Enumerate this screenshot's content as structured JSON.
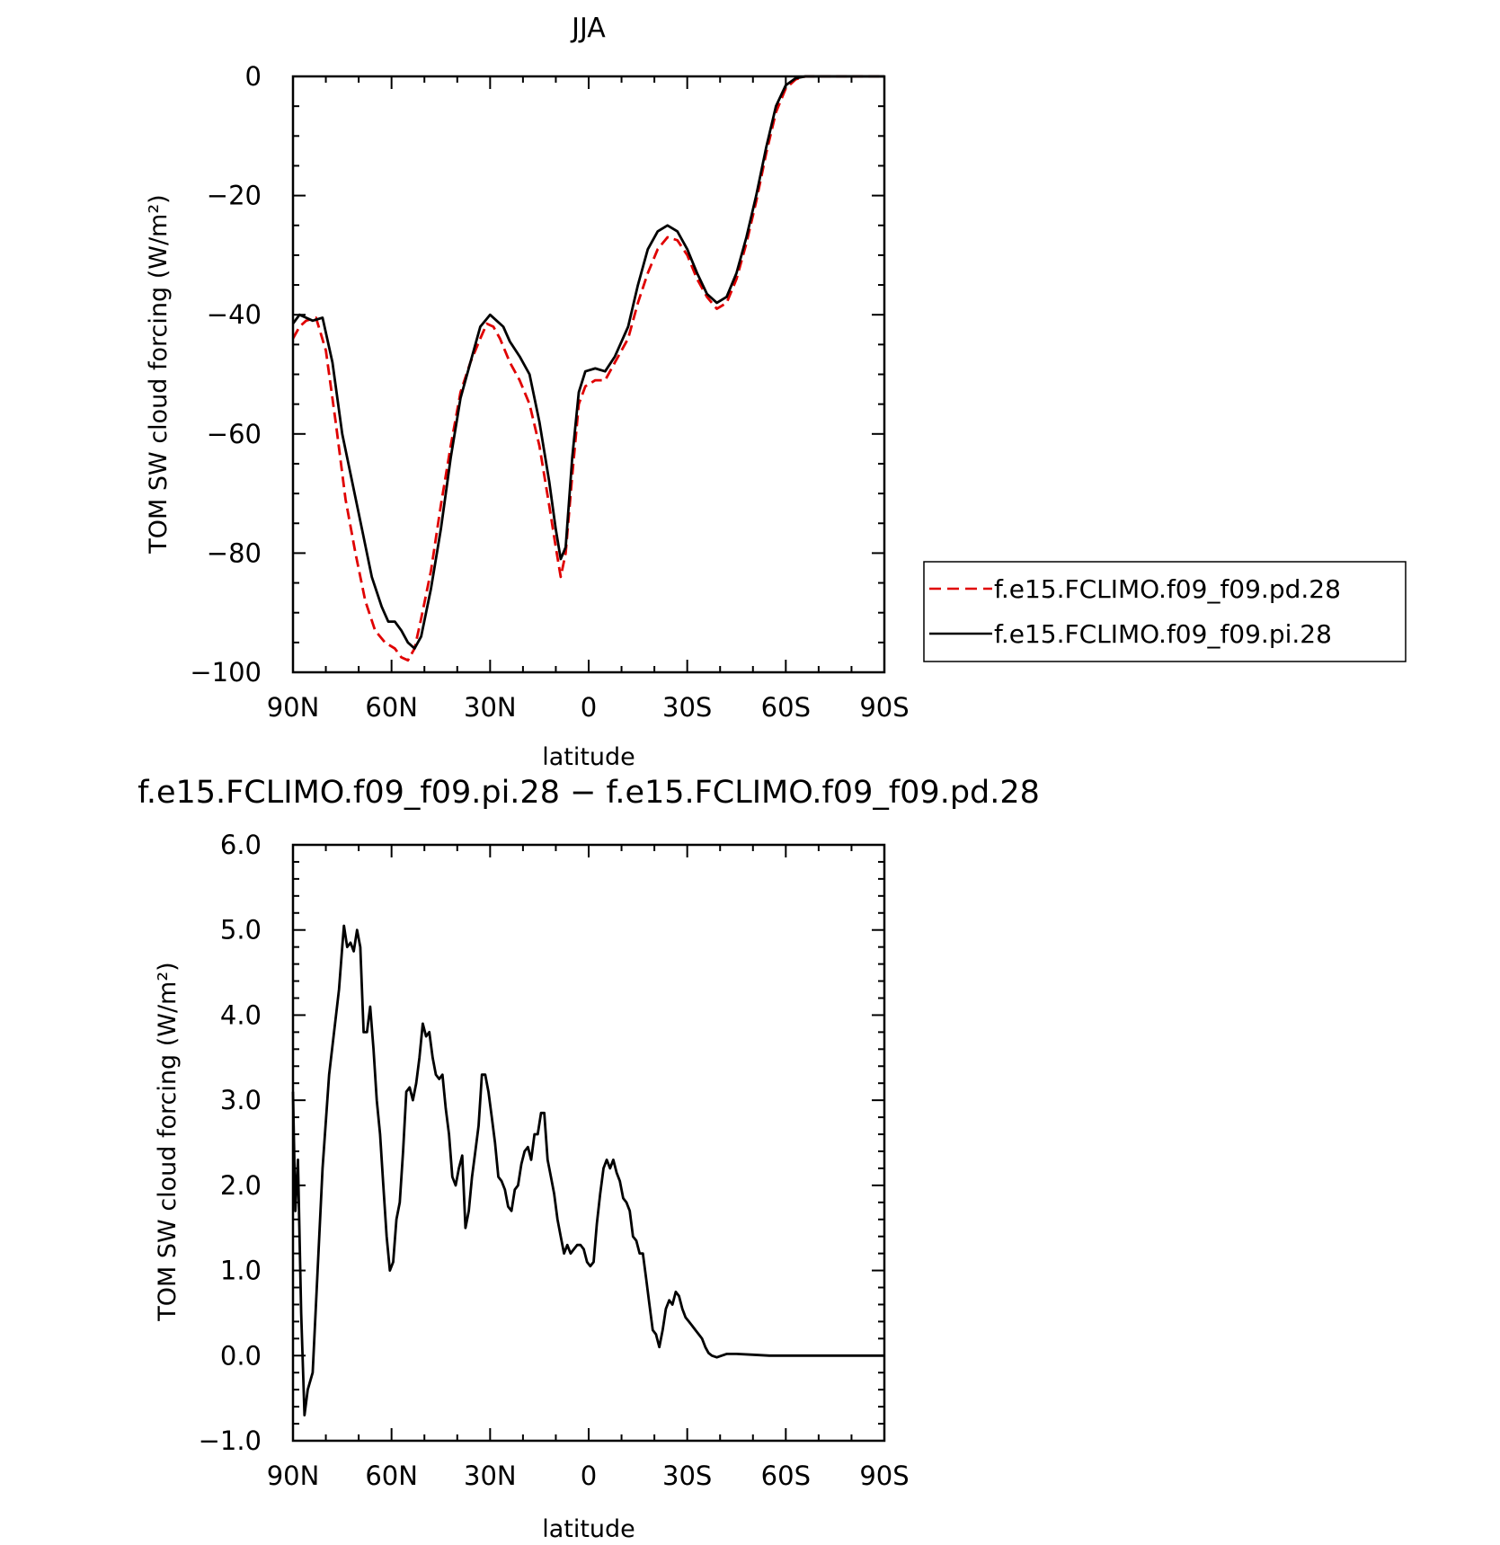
{
  "chart_data": [
    {
      "type": "line",
      "title": "JJA",
      "xlabel": "latitude",
      "ylabel": "TOM SW cloud forcing (W/m²)",
      "xlim": [
        90,
        -90
      ],
      "ylim": [
        -100,
        0
      ],
      "x_ticks": [
        90,
        60,
        30,
        0,
        -30,
        -60,
        -90
      ],
      "x_tick_labels": [
        "90N",
        "60N",
        "30N",
        "0",
        "30S",
        "60S",
        "90S"
      ],
      "y_ticks": [
        0,
        -20,
        -40,
        -60,
        -80,
        -100
      ],
      "y_tick_labels": [
        "0",
        "−20",
        "−40",
        "−60",
        "−80",
        "−100"
      ],
      "legend_position": "right",
      "series": [
        {
          "name": "f.e15.FCLIMO.f09_f09.pd.28",
          "color": "#e00000",
          "dash": "dashed",
          "points": [
            [
              90,
              -44
            ],
            [
              88,
              -42
            ],
            [
              86,
              -41
            ],
            [
              83,
              -40.5
            ],
            [
              80,
              -46
            ],
            [
              77,
              -58
            ],
            [
              74,
              -71
            ],
            [
              71,
              -80
            ],
            [
              68,
              -88
            ],
            [
              65,
              -93
            ],
            [
              62,
              -95
            ],
            [
              59,
              -96
            ],
            [
              57,
              -97.5
            ],
            [
              55,
              -98
            ],
            [
              53,
              -96
            ],
            [
              51,
              -91
            ],
            [
              48,
              -83
            ],
            [
              45,
              -72
            ],
            [
              42,
              -62
            ],
            [
              39,
              -53
            ],
            [
              36,
              -48
            ],
            [
              33,
              -44
            ],
            [
              31,
              -41.5
            ],
            [
              29,
              -42
            ],
            [
              27,
              -44
            ],
            [
              24,
              -48
            ],
            [
              21,
              -51
            ],
            [
              18,
              -55
            ],
            [
              15,
              -62
            ],
            [
              12,
              -72
            ],
            [
              10,
              -79
            ],
            [
              8.5,
              -84
            ],
            [
              7,
              -80
            ],
            [
              5,
              -67
            ],
            [
              3,
              -55
            ],
            [
              1,
              -52
            ],
            [
              -2,
              -51
            ],
            [
              -5,
              -51
            ],
            [
              -8,
              -48
            ],
            [
              -12,
              -44
            ],
            [
              -15,
              -38
            ],
            [
              -18,
              -33
            ],
            [
              -21,
              -29
            ],
            [
              -24,
              -27
            ],
            [
              -27,
              -27.5
            ],
            [
              -30,
              -30
            ],
            [
              -33,
              -34
            ],
            [
              -36,
              -37
            ],
            [
              -39,
              -39
            ],
            [
              -42,
              -38
            ],
            [
              -45,
              -34
            ],
            [
              -48,
              -28
            ],
            [
              -51,
              -21
            ],
            [
              -54,
              -13
            ],
            [
              -57,
              -6
            ],
            [
              -60,
              -2
            ],
            [
              -63,
              -0.5
            ],
            [
              -66,
              0
            ],
            [
              -70,
              0
            ],
            [
              -90,
              0
            ]
          ]
        },
        {
          "name": "f.e15.FCLIMO.f09_f09.pi.28",
          "color": "#000000",
          "dash": "solid",
          "points": [
            [
              90,
              -41.5
            ],
            [
              88,
              -40
            ],
            [
              86,
              -40.5
            ],
            [
              84,
              -41
            ],
            [
              81,
              -40.5
            ],
            [
              78,
              -48
            ],
            [
              75,
              -60
            ],
            [
              72,
              -68
            ],
            [
              69,
              -76
            ],
            [
              66,
              -84
            ],
            [
              63,
              -89
            ],
            [
              61,
              -91.5
            ],
            [
              59,
              -91.5
            ],
            [
              57,
              -93
            ],
            [
              55,
              -95
            ],
            [
              53,
              -96
            ],
            [
              51,
              -94
            ],
            [
              48,
              -86
            ],
            [
              45,
              -76
            ],
            [
              42,
              -64
            ],
            [
              39,
              -54
            ],
            [
              36,
              -48
            ],
            [
              33,
              -42
            ],
            [
              30,
              -40
            ],
            [
              28,
              -41
            ],
            [
              26,
              -42
            ],
            [
              24,
              -44.5
            ],
            [
              21,
              -47
            ],
            [
              18,
              -50
            ],
            [
              15,
              -58
            ],
            [
              12,
              -68
            ],
            [
              10,
              -76
            ],
            [
              8.5,
              -81
            ],
            [
              7,
              -79
            ],
            [
              5,
              -64
            ],
            [
              3,
              -53
            ],
            [
              1,
              -49.5
            ],
            [
              -2,
              -49
            ],
            [
              -5,
              -49.5
            ],
            [
              -8,
              -47
            ],
            [
              -12,
              -42
            ],
            [
              -15,
              -35
            ],
            [
              -18,
              -29
            ],
            [
              -21,
              -26
            ],
            [
              -24,
              -25
            ],
            [
              -27,
              -26
            ],
            [
              -30,
              -29
            ],
            [
              -33,
              -33
            ],
            [
              -36,
              -36.5
            ],
            [
              -39,
              -38
            ],
            [
              -42,
              -37
            ],
            [
              -45,
              -33
            ],
            [
              -48,
              -27
            ],
            [
              -51,
              -20
            ],
            [
              -54,
              -12
            ],
            [
              -57,
              -5
            ],
            [
              -60,
              -1.5
            ],
            [
              -63,
              -0.3
            ],
            [
              -66,
              0
            ],
            [
              -70,
              0
            ],
            [
              -90,
              0
            ]
          ]
        }
      ]
    },
    {
      "type": "line",
      "title": "f.e15.FCLIMO.f09_f09.pi.28 − f.e15.FCLIMO.f09_f09.pd.28",
      "xlabel": "latitude",
      "ylabel": "TOM SW cloud forcing (W/m²)",
      "xlim": [
        90,
        -90
      ],
      "ylim": [
        -1,
        6
      ],
      "x_ticks": [
        90,
        60,
        30,
        0,
        -30,
        -60,
        -90
      ],
      "x_tick_labels": [
        "90N",
        "60N",
        "30N",
        "0",
        "30S",
        "60S",
        "90S"
      ],
      "y_ticks": [
        6,
        5,
        4,
        3,
        2,
        1,
        0,
        -1
      ],
      "y_tick_labels": [
        "6.0",
        "5.0",
        "4.0",
        "3.0",
        "2.0",
        "1.0",
        "0.0",
        "−1.0"
      ],
      "series": [
        {
          "color": "#000000",
          "dash": "solid",
          "points": [
            [
              90,
              3.1
            ],
            [
              89.3,
              1.7
            ],
            [
              88.5,
              2.3
            ],
            [
              87.5,
              0.5
            ],
            [
              86.5,
              -0.7
            ],
            [
              85.5,
              -0.4
            ],
            [
              84,
              -0.2
            ],
            [
              82.5,
              1.0
            ],
            [
              81,
              2.2
            ],
            [
              79,
              3.3
            ],
            [
              77.5,
              3.8
            ],
            [
              76,
              4.3
            ],
            [
              75,
              4.8
            ],
            [
              74.5,
              5.05
            ],
            [
              73.5,
              4.8
            ],
            [
              72.5,
              4.85
            ],
            [
              71.5,
              4.75
            ],
            [
              70.5,
              5.0
            ],
            [
              69.5,
              4.8
            ],
            [
              68.5,
              3.8
            ],
            [
              67.5,
              3.8
            ],
            [
              66.5,
              4.1
            ],
            [
              65.5,
              3.6
            ],
            [
              64.5,
              3.0
            ],
            [
              63.5,
              2.6
            ],
            [
              62.5,
              2.0
            ],
            [
              61.5,
              1.4
            ],
            [
              60.5,
              1.0
            ],
            [
              59.5,
              1.1
            ],
            [
              58.5,
              1.6
            ],
            [
              57.5,
              1.8
            ],
            [
              56.5,
              2.4
            ],
            [
              55.5,
              3.1
            ],
            [
              54.5,
              3.15
            ],
            [
              53.5,
              3.0
            ],
            [
              52.5,
              3.2
            ],
            [
              51.5,
              3.5
            ],
            [
              50.5,
              3.9
            ],
            [
              49.5,
              3.75
            ],
            [
              48.5,
              3.8
            ],
            [
              47.5,
              3.5
            ],
            [
              46.5,
              3.3
            ],
            [
              45.5,
              3.25
            ],
            [
              44.5,
              3.3
            ],
            [
              43.5,
              2.9
            ],
            [
              42.5,
              2.6
            ],
            [
              41.5,
              2.1
            ],
            [
              40.5,
              2.0
            ],
            [
              39.5,
              2.2
            ],
            [
              38.5,
              2.35
            ],
            [
              37.5,
              1.5
            ],
            [
              36.5,
              1.7
            ],
            [
              35.5,
              2.1
            ],
            [
              34.5,
              2.4
            ],
            [
              33.5,
              2.7
            ],
            [
              32.5,
              3.3
            ],
            [
              31.5,
              3.3
            ],
            [
              30.5,
              3.1
            ],
            [
              29.5,
              2.8
            ],
            [
              28.5,
              2.5
            ],
            [
              27.5,
              2.1
            ],
            [
              26.5,
              2.05
            ],
            [
              25.5,
              1.95
            ],
            [
              24.5,
              1.75
            ],
            [
              23.5,
              1.7
            ],
            [
              22.5,
              1.95
            ],
            [
              21.5,
              2.0
            ],
            [
              20.5,
              2.25
            ],
            [
              19.5,
              2.4
            ],
            [
              18.5,
              2.45
            ],
            [
              17.5,
              2.3
            ],
            [
              16.5,
              2.6
            ],
            [
              15.5,
              2.6
            ],
            [
              14.5,
              2.85
            ],
            [
              13.5,
              2.85
            ],
            [
              12.5,
              2.3
            ],
            [
              11.5,
              2.1
            ],
            [
              10.5,
              1.9
            ],
            [
              9.5,
              1.6
            ],
            [
              8.5,
              1.4
            ],
            [
              7.5,
              1.2
            ],
            [
              6.5,
              1.3
            ],
            [
              5.5,
              1.2
            ],
            [
              4.5,
              1.25
            ],
            [
              3.5,
              1.3
            ],
            [
              2.5,
              1.3
            ],
            [
              1.5,
              1.25
            ],
            [
              0.5,
              1.1
            ],
            [
              -0.5,
              1.05
            ],
            [
              -1.5,
              1.1
            ],
            [
              -2.5,
              1.55
            ],
            [
              -3.5,
              1.9
            ],
            [
              -4.5,
              2.2
            ],
            [
              -5.5,
              2.3
            ],
            [
              -6.5,
              2.2
            ],
            [
              -7.5,
              2.3
            ],
            [
              -8.5,
              2.15
            ],
            [
              -9.5,
              2.05
            ],
            [
              -10.5,
              1.85
            ],
            [
              -11.5,
              1.8
            ],
            [
              -12.5,
              1.7
            ],
            [
              -13.5,
              1.4
            ],
            [
              -14.5,
              1.35
            ],
            [
              -15.5,
              1.2
            ],
            [
              -16.5,
              1.2
            ],
            [
              -17.5,
              0.9
            ],
            [
              -18.5,
              0.6
            ],
            [
              -19.5,
              0.3
            ],
            [
              -20.5,
              0.25
            ],
            [
              -21.5,
              0.1
            ],
            [
              -22.5,
              0.3
            ],
            [
              -23.5,
              0.55
            ],
            [
              -24.5,
              0.65
            ],
            [
              -25.5,
              0.6
            ],
            [
              -26.5,
              0.75
            ],
            [
              -27.5,
              0.7
            ],
            [
              -28.5,
              0.55
            ],
            [
              -29.5,
              0.45
            ],
            [
              -30.5,
              0.4
            ],
            [
              -31.5,
              0.35
            ],
            [
              -32.5,
              0.3
            ],
            [
              -33.5,
              0.25
            ],
            [
              -34.5,
              0.2
            ],
            [
              -35.5,
              0.1
            ],
            [
              -36.5,
              0.03
            ],
            [
              -37.5,
              0.0
            ],
            [
              -39,
              -0.02
            ],
            [
              -40.5,
              0.0
            ],
            [
              -42,
              0.02
            ],
            [
              -45,
              0.02
            ],
            [
              -50,
              0.01
            ],
            [
              -55,
              0.0
            ],
            [
              -90,
              0.0
            ]
          ]
        }
      ]
    }
  ]
}
